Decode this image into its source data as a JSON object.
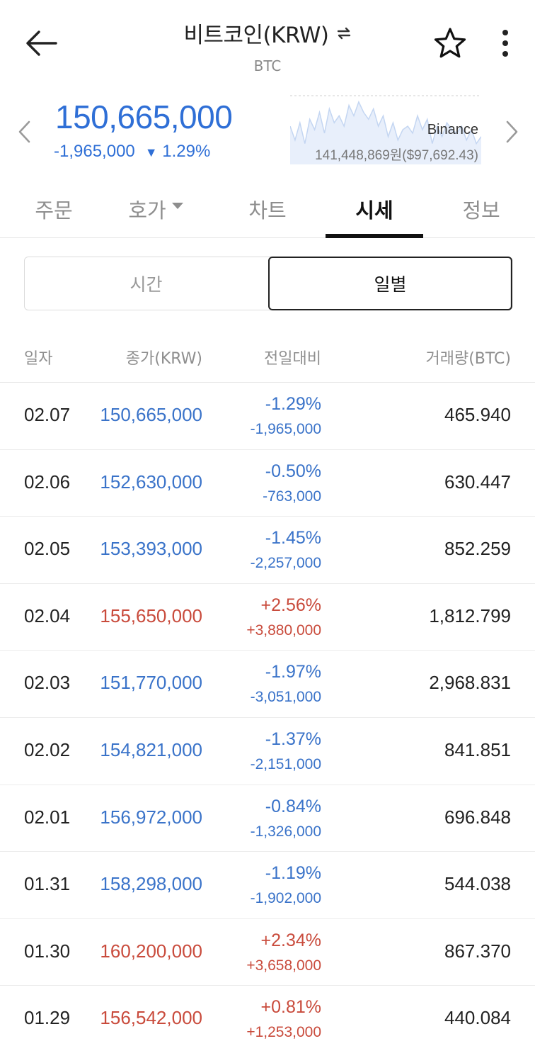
{
  "header": {
    "title": "비트코인(KRW)",
    "subtitle": "BTC"
  },
  "price": {
    "current": "150,665,000",
    "change_abs": "-1,965,000",
    "change_pct": "1.29%",
    "exchange": "Binance",
    "reference": "141,448,869원($97,692.43)",
    "mini_chart": [
      0.55,
      0.35,
      0.6,
      0.3,
      0.65,
      0.5,
      0.75,
      0.45,
      0.8,
      0.6,
      0.7,
      0.55,
      0.85,
      0.7,
      0.9,
      0.75,
      0.65,
      0.8,
      0.55,
      0.7,
      0.4,
      0.6,
      0.35,
      0.5,
      0.55,
      0.45,
      0.7,
      0.5,
      0.65,
      0.3,
      0.55,
      0.4,
      0.6,
      0.5,
      0.45,
      0.55,
      0.35,
      0.5,
      0.3,
      0.4
    ],
    "colors": {
      "price": "#2f6fd6",
      "down": "#3a73c9",
      "up": "#c94b3c"
    }
  },
  "tabs": [
    {
      "label": "주문"
    },
    {
      "label": "호가"
    },
    {
      "label": "차트"
    },
    {
      "label": "시세"
    },
    {
      "label": "정보"
    }
  ],
  "segment": {
    "time": "시간",
    "daily": "일별"
  },
  "table": {
    "headers": {
      "date": "일자",
      "close": "종가(KRW)",
      "change": "전일대비",
      "volume": "거래량(BTC)"
    },
    "rows": [
      {
        "date": "02.07",
        "close": "150,665,000",
        "pct": "-1.29%",
        "abs": "-1,965,000",
        "volume": "465.940",
        "dir": "down"
      },
      {
        "date": "02.06",
        "close": "152,630,000",
        "pct": "-0.50%",
        "abs": "-763,000",
        "volume": "630.447",
        "dir": "down"
      },
      {
        "date": "02.05",
        "close": "153,393,000",
        "pct": "-1.45%",
        "abs": "-2,257,000",
        "volume": "852.259",
        "dir": "down"
      },
      {
        "date": "02.04",
        "close": "155,650,000",
        "pct": "+2.56%",
        "abs": "+3,880,000",
        "volume": "1,812.799",
        "dir": "up"
      },
      {
        "date": "02.03",
        "close": "151,770,000",
        "pct": "-1.97%",
        "abs": "-3,051,000",
        "volume": "2,968.831",
        "dir": "down"
      },
      {
        "date": "02.02",
        "close": "154,821,000",
        "pct": "-1.37%",
        "abs": "-2,151,000",
        "volume": "841.851",
        "dir": "down"
      },
      {
        "date": "02.01",
        "close": "156,972,000",
        "pct": "-0.84%",
        "abs": "-1,326,000",
        "volume": "696.848",
        "dir": "down"
      },
      {
        "date": "01.31",
        "close": "158,298,000",
        "pct": "-1.19%",
        "abs": "-1,902,000",
        "volume": "544.038",
        "dir": "down"
      },
      {
        "date": "01.30",
        "close": "160,200,000",
        "pct": "+2.34%",
        "abs": "+3,658,000",
        "volume": "867.370",
        "dir": "up"
      },
      {
        "date": "01.29",
        "close": "156,542,000",
        "pct": "+0.81%",
        "abs": "+1,253,000",
        "volume": "440.084",
        "dir": "up"
      }
    ]
  }
}
